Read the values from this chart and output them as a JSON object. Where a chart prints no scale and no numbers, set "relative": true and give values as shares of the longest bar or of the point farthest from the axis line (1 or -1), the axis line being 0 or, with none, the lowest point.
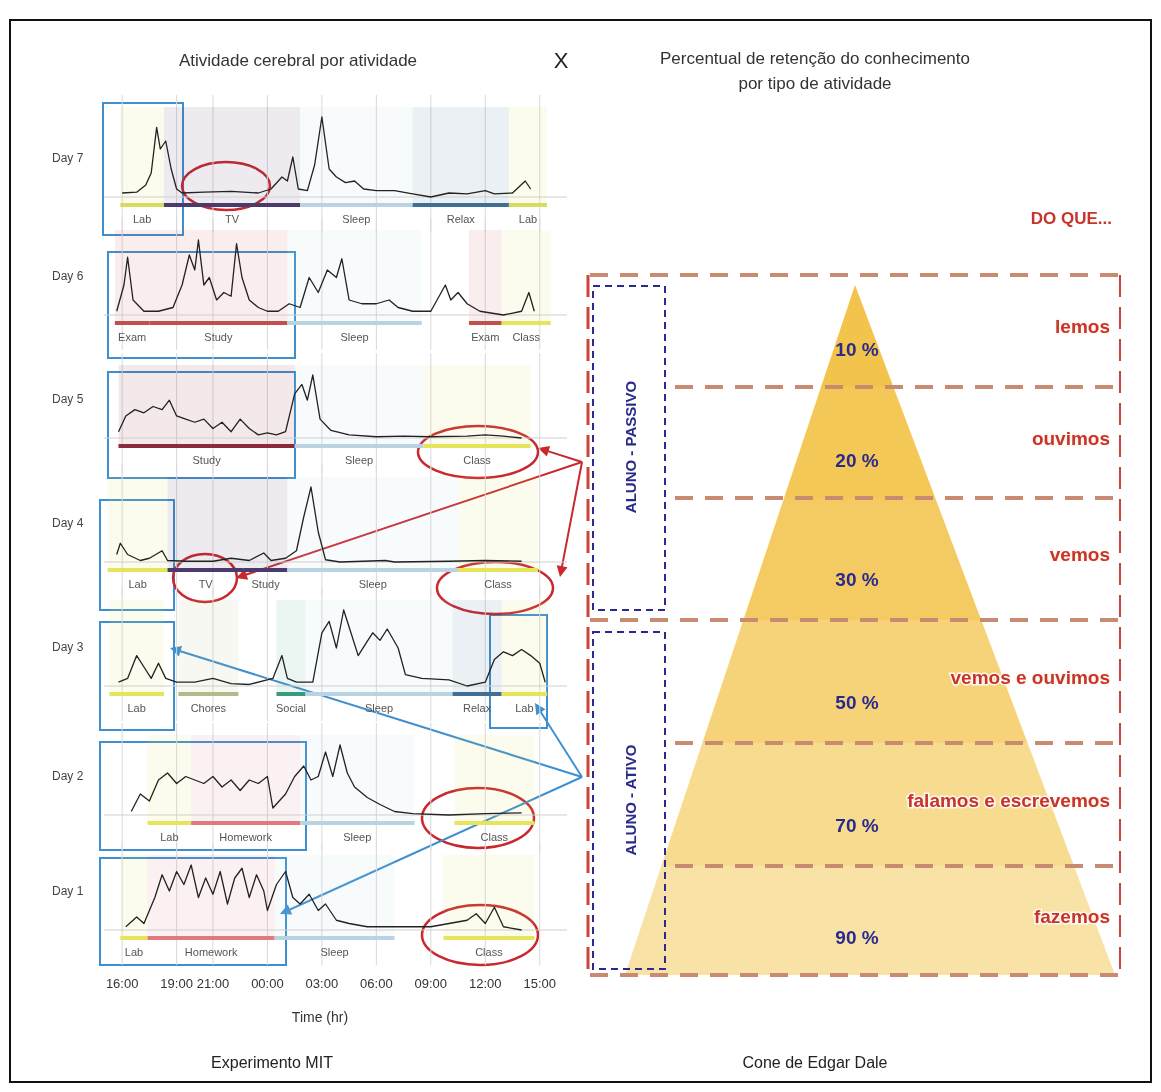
{
  "chart_data": [
    {
      "type": "line",
      "title": "Atividade cerebral por atividade",
      "ylabel": "Day 7",
      "relative": true,
      "grid": "x",
      "legend": "bottom",
      "tick_labels": false,
      "annotations": [
        "X"
      ],
      "xlim": [
        "2000-01-01T15:00",
        "2000-01-02T16:30"
      ],
      "xticks": [
        {
          "value": "2000-01-01T16:00",
          "label": null
        },
        {
          "value": "2000-01-01T19:00",
          "label": null
        },
        {
          "value": "2000-01-01T21:00",
          "label": null
        },
        {
          "value": "2000-01-02T00:00",
          "label": null
        },
        {
          "value": "2000-01-02T03:00",
          "label": null
        },
        {
          "value": "2000-01-02T06:00",
          "label": null
        },
        {
          "value": "2000-01-02T09:00",
          "label": null
        },
        {
          "value": "2000-01-02T12:00",
          "label": null
        },
        {
          "value": "2000-01-02T15:00",
          "label": null
        }
      ],
      "x": [
        "2000-01-01T16:00",
        "2000-01-01T16:48",
        "2000-01-01T17:18",
        "2000-01-01T17:36",
        "2000-01-01T17:54",
        "2000-01-01T18:06",
        "2000-01-01T18:24",
        "2000-01-01T18:42",
        "2000-01-01T19:00",
        "2000-01-01T19:18",
        "2000-01-01T20:30",
        "2000-01-01T22:00",
        "2000-01-01T23:30",
        "2000-01-02T00:12",
        "2000-01-02T00:48",
        "2000-01-02T01:06",
        "2000-01-02T01:24",
        "2000-01-02T01:42",
        "2000-01-02T02:12",
        "2000-01-02T02:36",
        "2000-01-02T03:00",
        "2000-01-02T03:24",
        "2000-01-02T03:48",
        "2000-01-02T04:18",
        "2000-01-02T04:48",
        "2000-01-02T05:18",
        "2000-01-02T06:00",
        "2000-01-02T07:00",
        "2000-01-02T08:00",
        "2000-01-02T09:00",
        "2000-01-02T10:00",
        "2000-01-02T11:00",
        "2000-01-02T12:00",
        "2000-01-02T12:30",
        "2000-01-02T13:30",
        "2000-01-02T14:12",
        "2000-01-02T14:30"
      ],
      "series": [
        {
          "color": "#222222",
          "values": [
            0.05,
            0.06,
            0.15,
            0.3,
            0.87,
            0.6,
            0.7,
            0.35,
            0.1,
            0.05,
            0.06,
            0.07,
            0.05,
            0.1,
            0.25,
            0.2,
            0.5,
            0.1,
            0.08,
            0.4,
            1.0,
            0.35,
            0.25,
            0.18,
            0.2,
            0.1,
            0.08,
            0.08,
            0.04,
            0,
            0.05,
            0.04,
            0.08,
            0.04,
            0.05,
            0.2,
            0.1
          ]
        }
      ],
      "bands": [
        {
          "axis": "x",
          "from": "2000-01-01T15:54",
          "to": "2000-01-01T18:18",
          "label": "Lab",
          "color": "#d8dc5c"
        },
        {
          "axis": "x",
          "from": "2000-01-01T18:18",
          "to": "2000-01-02T01:48",
          "label": "TV",
          "color": "#4a3a6e"
        },
        {
          "axis": "x",
          "from": "2000-01-02T01:48",
          "to": "2000-01-02T08:00",
          "label": "Sleep",
          "color": "#b9d3e3"
        },
        {
          "axis": "x",
          "from": "2000-01-02T08:00",
          "to": "2000-01-02T13:18",
          "label": "Relax",
          "color": "#3f6f94"
        },
        {
          "axis": "x",
          "from": "2000-01-02T13:18",
          "to": "2000-01-02T15:24",
          "label": "Lab",
          "color": "#d8dc5c"
        }
      ]
    },
    {
      "type": "line",
      "ylabel": "Day 6",
      "relative": true,
      "grid": "x",
      "legend": "bottom",
      "tick_labels": false,
      "xlim": [
        "2000-01-01T15:00",
        "2000-01-02T16:30"
      ],
      "xticks": [
        {
          "value": "2000-01-01T16:00",
          "label": null
        },
        {
          "value": "2000-01-01T19:00",
          "label": null
        },
        {
          "value": "2000-01-01T21:00",
          "label": null
        },
        {
          "value": "2000-01-02T00:00",
          "label": null
        },
        {
          "value": "2000-01-02T03:00",
          "label": null
        },
        {
          "value": "2000-01-02T06:00",
          "label": null
        },
        {
          "value": "2000-01-02T09:00",
          "label": null
        },
        {
          "value": "2000-01-02T12:00",
          "label": null
        },
        {
          "value": "2000-01-02T15:00",
          "label": null
        }
      ],
      "x": [
        "2000-01-01T15:42",
        "2000-01-01T16:06",
        "2000-01-01T16:18",
        "2000-01-01T16:36",
        "2000-01-01T17:12",
        "2000-01-01T18:00",
        "2000-01-01T18:48",
        "2000-01-01T19:18",
        "2000-01-01T19:42",
        "2000-01-01T20:00",
        "2000-01-01T20:12",
        "2000-01-01T20:30",
        "2000-01-01T20:48",
        "2000-01-01T21:12",
        "2000-01-01T21:36",
        "2000-01-01T22:00",
        "2000-01-01T22:18",
        "2000-01-01T22:36",
        "2000-01-01T23:00",
        "2000-01-01T23:30",
        "2000-01-02T00:00",
        "2000-01-02T00:36",
        "2000-01-02T01:12",
        "2000-01-02T01:48",
        "2000-01-02T02:18",
        "2000-01-02T02:48",
        "2000-01-02T03:18",
        "2000-01-02T03:48",
        "2000-01-02T04:06",
        "2000-01-02T04:30",
        "2000-01-02T05:12",
        "2000-01-02T06:00",
        "2000-01-02T06:42",
        "2000-01-02T07:12",
        "2000-01-02T08:00",
        "2000-01-02T09:00",
        "2000-01-02T09:48",
        "2000-01-02T10:06",
        "2000-01-02T10:30",
        "2000-01-02T11:00",
        "2000-01-02T11:42",
        "2000-01-02T13:00",
        "2000-01-02T14:00",
        "2000-01-02T14:24",
        "2000-01-02T14:42"
      ],
      "series": [
        {
          "color": "#222222",
          "values": [
            0.05,
            0.4,
            0.77,
            0.2,
            0.05,
            0.05,
            0.1,
            0.4,
            0.8,
            0.6,
            1.0,
            0.4,
            0.5,
            0.2,
            0.3,
            0.25,
            0.95,
            0.5,
            0.2,
            0.1,
            0.05,
            0.05,
            0.15,
            0.1,
            0.5,
            0.3,
            0.6,
            0.5,
            0.75,
            0.2,
            0.15,
            0.15,
            0.2,
            0.1,
            0.05,
            0.05,
            0.4,
            0.2,
            0.3,
            0.15,
            0.05,
            0,
            0.05,
            0.3,
            0.05
          ]
        }
      ],
      "bands": [
        {
          "axis": "x",
          "from": "2000-01-01T15:36",
          "to": "2000-01-01T17:30",
          "label": "Exam",
          "color": "#c0504d"
        },
        {
          "axis": "x",
          "from": "2000-01-01T17:30",
          "to": "2000-01-02T01:06",
          "label": "Study",
          "color": "#c0504d"
        },
        {
          "axis": "x",
          "from": "2000-01-02T01:06",
          "to": "2000-01-02T08:30",
          "label": "Sleep",
          "color": "#b9d3e3"
        },
        {
          "axis": "x",
          "from": "2000-01-02T11:06",
          "to": "2000-01-02T12:54",
          "label": "Exam",
          "color": "#c0504d"
        },
        {
          "axis": "x",
          "from": "2000-01-02T12:54",
          "to": "2000-01-02T15:36",
          "label": "Class",
          "color": "#e6e45a"
        }
      ]
    },
    {
      "type": "line",
      "ylabel": "Day 5",
      "relative": true,
      "grid": "x",
      "legend": "bottom",
      "tick_labels": false,
      "xlim": [
        "2000-01-01T15:00",
        "2000-01-02T16:30"
      ],
      "xticks": [
        {
          "value": "2000-01-01T16:00",
          "label": null
        },
        {
          "value": "2000-01-01T19:00",
          "label": null
        },
        {
          "value": "2000-01-01T21:00",
          "label": null
        },
        {
          "value": "2000-01-02T00:00",
          "label": null
        },
        {
          "value": "2000-01-02T03:00",
          "label": null
        },
        {
          "value": "2000-01-02T06:00",
          "label": null
        },
        {
          "value": "2000-01-02T09:00",
          "label": null
        },
        {
          "value": "2000-01-02T12:00",
          "label": null
        },
        {
          "value": "2000-01-02T15:00",
          "label": null
        }
      ],
      "x": [
        "2000-01-01T15:48",
        "2000-01-01T16:12",
        "2000-01-01T16:42",
        "2000-01-01T17:12",
        "2000-01-01T17:42",
        "2000-01-01T18:12",
        "2000-01-01T18:36",
        "2000-01-01T19:00",
        "2000-01-01T19:30",
        "2000-01-01T20:00",
        "2000-01-01T20:30",
        "2000-01-01T21:00",
        "2000-01-01T21:30",
        "2000-01-01T22:00",
        "2000-01-01T22:30",
        "2000-01-01T23:00",
        "2000-01-01T23:30",
        "2000-01-02T00:00",
        "2000-01-02T00:30",
        "2000-01-02T01:00",
        "2000-01-02T01:30",
        "2000-01-02T01:54",
        "2000-01-02T02:12",
        "2000-01-02T02:30",
        "2000-01-02T02:54",
        "2000-01-02T03:30",
        "2000-01-02T04:30",
        "2000-01-02T06:00",
        "2000-01-02T07:30",
        "2000-01-02T09:00",
        "2000-01-02T11:00",
        "2000-01-02T12:00",
        "2000-01-02T13:00",
        "2000-01-02T14:00"
      ],
      "series": [
        {
          "color": "#222222",
          "values": [
            0.1,
            0.35,
            0.45,
            0.4,
            0.5,
            0.45,
            0.6,
            0.35,
            0.3,
            0.25,
            0.3,
            0.15,
            0.25,
            0.1,
            0.3,
            0.15,
            0.05,
            0.08,
            0.05,
            0.1,
            0.7,
            0.85,
            0.6,
            1.0,
            0.3,
            0.12,
            0.05,
            0.02,
            0.03,
            0.02,
            0.03,
            0.05,
            0.03,
            0
          ]
        }
      ],
      "bands": [
        {
          "axis": "x",
          "from": "2000-01-01T15:48",
          "to": "2000-01-02T01:30",
          "label": "Study",
          "color": "#8b2a3c"
        },
        {
          "axis": "x",
          "from": "2000-01-02T01:30",
          "to": "2000-01-02T08:36",
          "label": "Sleep",
          "color": "#b9d3e3"
        },
        {
          "axis": "x",
          "from": "2000-01-02T08:36",
          "to": "2000-01-02T14:30",
          "label": "Class",
          "color": "#e6e45a"
        }
      ]
    },
    {
      "type": "line",
      "ylabel": "Day 4",
      "relative": true,
      "grid": "x",
      "legend": "bottom",
      "tick_labels": false,
      "xlim": [
        "2000-01-01T15:00",
        "2000-01-02T16:30"
      ],
      "xticks": [
        {
          "value": "2000-01-01T16:00",
          "label": null
        },
        {
          "value": "2000-01-01T19:00",
          "label": null
        },
        {
          "value": "2000-01-01T21:00",
          "label": null
        },
        {
          "value": "2000-01-02T00:00",
          "label": null
        },
        {
          "value": "2000-01-02T03:00",
          "label": null
        },
        {
          "value": "2000-01-02T06:00",
          "label": null
        },
        {
          "value": "2000-01-02T09:00",
          "label": null
        },
        {
          "value": "2000-01-02T12:00",
          "label": null
        },
        {
          "value": "2000-01-02T15:00",
          "label": null
        }
      ],
      "x": [
        "2000-01-01T15:42",
        "2000-01-01T15:54",
        "2000-01-01T16:18",
        "2000-01-01T17:00",
        "2000-01-01T17:30",
        "2000-01-01T18:12",
        "2000-01-01T18:30",
        "2000-01-01T19:30",
        "2000-01-01T21:00",
        "2000-01-01T22:00",
        "2000-01-01T23:00",
        "2000-01-01T23:48",
        "2000-01-02T00:12",
        "2000-01-02T01:00",
        "2000-01-02T01:36",
        "2000-01-02T02:00",
        "2000-01-02T02:24",
        "2000-01-02T02:48",
        "2000-01-02T03:12",
        "2000-01-02T04:00",
        "2000-01-02T06:30",
        "2000-01-02T07:00",
        "2000-01-02T10:00",
        "2000-01-02T12:00",
        "2000-01-02T14:00"
      ],
      "series": [
        {
          "color": "#222222",
          "values": [
            0.1,
            0.25,
            0.1,
            0.02,
            0.05,
            0.15,
            0.02,
            0.01,
            0.01,
            0.05,
            0.02,
            0.12,
            0.02,
            0.05,
            0.15,
            0.6,
            1.0,
            0.4,
            0.03,
            0.0,
            0.02,
            0.0,
            0.01,
            0.02,
            0.01
          ]
        }
      ],
      "bands": [
        {
          "axis": "x",
          "from": "2000-01-01T15:12",
          "to": "2000-01-01T18:30",
          "label": "Lab",
          "color": "#e6e45a"
        },
        {
          "axis": "x",
          "from": "2000-01-01T18:30",
          "to": "2000-01-01T22:42",
          "label": "TV",
          "color": "#4a3a6e"
        },
        {
          "axis": "x",
          "from": "2000-01-01T22:42",
          "to": "2000-01-02T01:06",
          "label": "Study",
          "color": "#4a3a6e"
        },
        {
          "axis": "x",
          "from": "2000-01-02T01:06",
          "to": "2000-01-02T10:30",
          "label": "Sleep",
          "color": "#b9d3e3"
        },
        {
          "axis": "x",
          "from": "2000-01-02T10:30",
          "to": "2000-01-02T14:54",
          "label": "Class",
          "color": "#e6e45a"
        }
      ]
    },
    {
      "type": "line",
      "ylabel": "Day 3",
      "relative": true,
      "grid": "x",
      "legend": "bottom",
      "tick_labels": false,
      "xlim": [
        "2000-01-01T15:00",
        "2000-01-02T16:30"
      ],
      "xticks": [
        {
          "value": "2000-01-01T16:00",
          "label": null
        },
        {
          "value": "2000-01-01T19:00",
          "label": null
        },
        {
          "value": "2000-01-01T21:00",
          "label": null
        },
        {
          "value": "2000-01-02T00:00",
          "label": null
        },
        {
          "value": "2000-01-02T03:00",
          "label": null
        },
        {
          "value": "2000-01-02T06:00",
          "label": null
        },
        {
          "value": "2000-01-02T09:00",
          "label": null
        },
        {
          "value": "2000-01-02T12:00",
          "label": null
        },
        {
          "value": "2000-01-02T15:00",
          "label": null
        }
      ],
      "x": [
        "2000-01-01T15:48",
        "2000-01-01T16:18",
        "2000-01-01T16:48",
        "2000-01-01T17:12",
        "2000-01-01T17:36",
        "2000-01-01T18:00",
        "2000-01-01T18:24",
        "2000-01-01T19:00",
        "2000-01-01T20:00",
        "2000-01-01T21:00",
        "2000-01-01T22:00",
        "2000-01-01T23:00",
        "2000-01-02T00:18",
        "2000-01-02T00:48",
        "2000-01-02T01:06",
        "2000-01-02T01:36",
        "2000-01-02T02:30",
        "2000-01-02T03:00",
        "2000-01-02T03:24",
        "2000-01-02T03:48",
        "2000-01-02T04:12",
        "2000-01-02T04:36",
        "2000-01-02T05:00",
        "2000-01-02T05:24",
        "2000-01-02T05:48",
        "2000-01-02T06:12",
        "2000-01-02T06:36",
        "2000-01-02T07:12",
        "2000-01-02T07:36",
        "2000-01-02T08:30",
        "2000-01-02T10:00",
        "2000-01-02T11:00",
        "2000-01-02T12:00",
        "2000-01-02T12:30",
        "2000-01-02T13:00",
        "2000-01-02T13:30",
        "2000-01-02T14:00",
        "2000-01-02T14:30",
        "2000-01-02T15:00",
        "2000-01-02T15:18"
      ],
      "series": [
        {
          "color": "#222222",
          "values": [
            0.05,
            0.1,
            0.4,
            0.25,
            0.1,
            0.3,
            0.1,
            0.05,
            0.05,
            0.1,
            0.03,
            0.02,
            0.1,
            0.4,
            0.1,
            0.05,
            0.05,
            0.7,
            0.85,
            0.5,
            1.0,
            0.7,
            0.4,
            0.55,
            0.7,
            0.6,
            0.75,
            0.5,
            0.15,
            0.1,
            0.08,
            0,
            0.05,
            0.35,
            0.45,
            0.4,
            0.48,
            0.4,
            0.3,
            0.05
          ]
        }
      ],
      "bands": [
        {
          "axis": "x",
          "from": "2000-01-01T15:18",
          "to": "2000-01-01T18:18",
          "label": "Lab",
          "color": "#e6e45a"
        },
        {
          "axis": "x",
          "from": "2000-01-01T19:06",
          "to": "2000-01-01T22:24",
          "label": "Chores",
          "color": "#b6b98a"
        },
        {
          "axis": "x",
          "from": "2000-01-02T00:30",
          "to": "2000-01-02T02:06",
          "label": "Social",
          "color": "#3a9a80"
        },
        {
          "axis": "x",
          "from": "2000-01-02T02:06",
          "to": "2000-01-02T10:12",
          "label": "Sleep",
          "color": "#b9d3e3"
        },
        {
          "axis": "x",
          "from": "2000-01-02T10:12",
          "to": "2000-01-02T12:54",
          "label": "Relax",
          "color": "#3f6f94"
        },
        {
          "axis": "x",
          "from": "2000-01-02T12:54",
          "to": "2000-01-02T15:24",
          "label": "Lab",
          "color": "#e6e45a"
        }
      ]
    },
    {
      "type": "line",
      "ylabel": "Day 2",
      "relative": true,
      "grid": "x",
      "legend": "bottom",
      "tick_labels": false,
      "xlim": [
        "2000-01-01T15:00",
        "2000-01-02T16:30"
      ],
      "xticks": [
        {
          "value": "2000-01-01T16:00",
          "label": null
        },
        {
          "value": "2000-01-01T19:00",
          "label": null
        },
        {
          "value": "2000-01-01T21:00",
          "label": null
        },
        {
          "value": "2000-01-02T00:00",
          "label": null
        },
        {
          "value": "2000-01-02T03:00",
          "label": null
        },
        {
          "value": "2000-01-02T06:00",
          "label": null
        },
        {
          "value": "2000-01-02T09:00",
          "label": null
        },
        {
          "value": "2000-01-02T12:00",
          "label": null
        },
        {
          "value": "2000-01-02T15:00",
          "label": null
        }
      ],
      "x": [
        "2000-01-01T16:30",
        "2000-01-01T17:00",
        "2000-01-01T17:30",
        "2000-01-01T18:00",
        "2000-01-01T18:30",
        "2000-01-01T19:00",
        "2000-01-01T19:30",
        "2000-01-01T20:00",
        "2000-01-01T20:30",
        "2000-01-01T21:00",
        "2000-01-01T21:30",
        "2000-01-01T22:00",
        "2000-01-01T22:30",
        "2000-01-01T23:00",
        "2000-01-01T23:30",
        "2000-01-02T00:00",
        "2000-01-02T00:18",
        "2000-01-02T01:00",
        "2000-01-02T01:30",
        "2000-01-02T02:00",
        "2000-01-02T02:24",
        "2000-01-02T02:48",
        "2000-01-02T03:12",
        "2000-01-02T03:36",
        "2000-01-02T04:00",
        "2000-01-02T04:24",
        "2000-01-02T04:48",
        "2000-01-02T05:30",
        "2000-01-02T06:12",
        "2000-01-02T07:00",
        "2000-01-02T08:00",
        "2000-01-02T10:00",
        "2000-01-02T12:00",
        "2000-01-02T14:00"
      ],
      "series": [
        {
          "color": "#222222",
          "values": [
            0.05,
            0.3,
            0.2,
            0.5,
            0.6,
            0.45,
            0.55,
            0.5,
            0.45,
            0.55,
            0.4,
            0.5,
            0.35,
            0.5,
            0.45,
            0.55,
            0.1,
            0.3,
            0.55,
            0.7,
            0.5,
            0.55,
            0.9,
            0.55,
            1.0,
            0.6,
            0.4,
            0.25,
            0.15,
            0.05,
            0.02,
            0,
            0.02,
            0.03
          ]
        }
      ],
      "bands": [
        {
          "axis": "x",
          "from": "2000-01-01T17:24",
          "to": "2000-01-01T19:48",
          "label": "Lab",
          "color": "#e6e45a"
        },
        {
          "axis": "x",
          "from": "2000-01-01T19:48",
          "to": "2000-01-02T01:48",
          "label": "Homework",
          "color": "#e07a80"
        },
        {
          "axis": "x",
          "from": "2000-01-02T01:48",
          "to": "2000-01-02T08:06",
          "label": "Sleep",
          "color": "#b9d3e3"
        },
        {
          "axis": "x",
          "from": "2000-01-02T10:18",
          "to": "2000-01-02T14:42",
          "label": "Class",
          "color": "#e6e45a"
        }
      ]
    },
    {
      "type": "line",
      "ylabel": "Day 1",
      "xlabel": "Time (hr)",
      "relative": true,
      "grid": "x",
      "tick_labels": "x",
      "legend": "bottom",
      "annotations": [
        "Experimento MIT"
      ],
      "xlim": [
        "2000-01-01T15:00",
        "2000-01-02T16:30"
      ],
      "xticks": [
        {
          "value": "2000-01-01T16:00",
          "label": "16:00"
        },
        {
          "value": "2000-01-01T19:00",
          "label": "19:00"
        },
        {
          "value": "2000-01-01T21:00",
          "label": "21:00"
        },
        {
          "value": "2000-01-02T00:00",
          "label": "00:00"
        },
        {
          "value": "2000-01-02T03:00",
          "label": "03:00"
        },
        {
          "value": "2000-01-02T06:00",
          "label": "06:00"
        },
        {
          "value": "2000-01-02T09:00",
          "label": "09:00"
        },
        {
          "value": "2000-01-02T12:00",
          "label": "12:00"
        },
        {
          "value": "2000-01-02T15:00",
          "label": "15:00"
        }
      ],
      "x": [
        "2000-01-01T16:12",
        "2000-01-01T16:48",
        "2000-01-01T17:12",
        "2000-01-01T17:48",
        "2000-01-01T18:12",
        "2000-01-01T18:36",
        "2000-01-01T19:00",
        "2000-01-01T19:24",
        "2000-01-01T19:48",
        "2000-01-01T20:12",
        "2000-01-01T20:36",
        "2000-01-01T21:00",
        "2000-01-01T21:24",
        "2000-01-01T21:48",
        "2000-01-01T22:12",
        "2000-01-01T22:36",
        "2000-01-01T23:00",
        "2000-01-01T23:24",
        "2000-01-01T23:48",
        "2000-01-02T00:00",
        "2000-01-02T00:30",
        "2000-01-02T01:00",
        "2000-01-02T01:24",
        "2000-01-02T01:48",
        "2000-01-02T02:18",
        "2000-01-02T02:48",
        "2000-01-02T03:12",
        "2000-01-02T03:48",
        "2000-01-02T04:30",
        "2000-01-02T05:30",
        "2000-01-02T07:00",
        "2000-01-02T09:00",
        "2000-01-02T10:00",
        "2000-01-02T11:00",
        "2000-01-02T11:30",
        "2000-01-02T12:00",
        "2000-01-02T12:30",
        "2000-01-02T13:00",
        "2000-01-02T14:00"
      ],
      "series": [
        {
          "color": "#222222",
          "values": [
            0.05,
            0.2,
            0.1,
            0.5,
            0.85,
            0.6,
            0.9,
            0.7,
            1.0,
            0.5,
            0.8,
            0.55,
            0.9,
            0.4,
            0.8,
            0.95,
            0.5,
            0.85,
            0.6,
            0.3,
            0.7,
            0.9,
            0.5,
            0.4,
            0.55,
            0.3,
            0.4,
            0.15,
            0.1,
            0.05,
            0.05,
            0.05,
            0.1,
            0.15,
            0.25,
            0.1,
            0.35,
            0.05,
            0
          ]
        }
      ],
      "bands": [
        {
          "axis": "x",
          "from": "2000-01-01T15:54",
          "to": "2000-01-01T17:24",
          "label": "Lab",
          "color": "#e6e45a"
        },
        {
          "axis": "x",
          "from": "2000-01-01T17:24",
          "to": "2000-01-02T00:24",
          "label": "Homework",
          "color": "#e07a80"
        },
        {
          "axis": "x",
          "from": "2000-01-02T00:24",
          "to": "2000-01-02T07:00",
          "label": "Sleep",
          "color": "#b9d3e3"
        },
        {
          "axis": "x",
          "from": "2000-01-02T09:42",
          "to": "2000-01-02T14:42",
          "label": "Class",
          "color": "#e6e45a"
        }
      ]
    },
    {
      "type": "other",
      "title": "Percentual de retenção do conhecimento\npor tipo de atividade",
      "categories": [
        "lemos",
        "ouvimos",
        "vemos",
        "vemos e ouvimos",
        "falamos e escrevemos",
        "fazemos"
      ],
      "values": [
        10,
        20,
        30,
        50,
        70,
        90
      ],
      "value_labels": [
        "10 %",
        "20 %",
        "30 %",
        "50 %",
        "70 %",
        "90 %"
      ],
      "annotations": [
        "DO QUE...",
        "ALUNO - PASSIVO",
        "ALUNO - ATIVO",
        "Cone de Edgar Dale"
      ]
    }
  ]
}
